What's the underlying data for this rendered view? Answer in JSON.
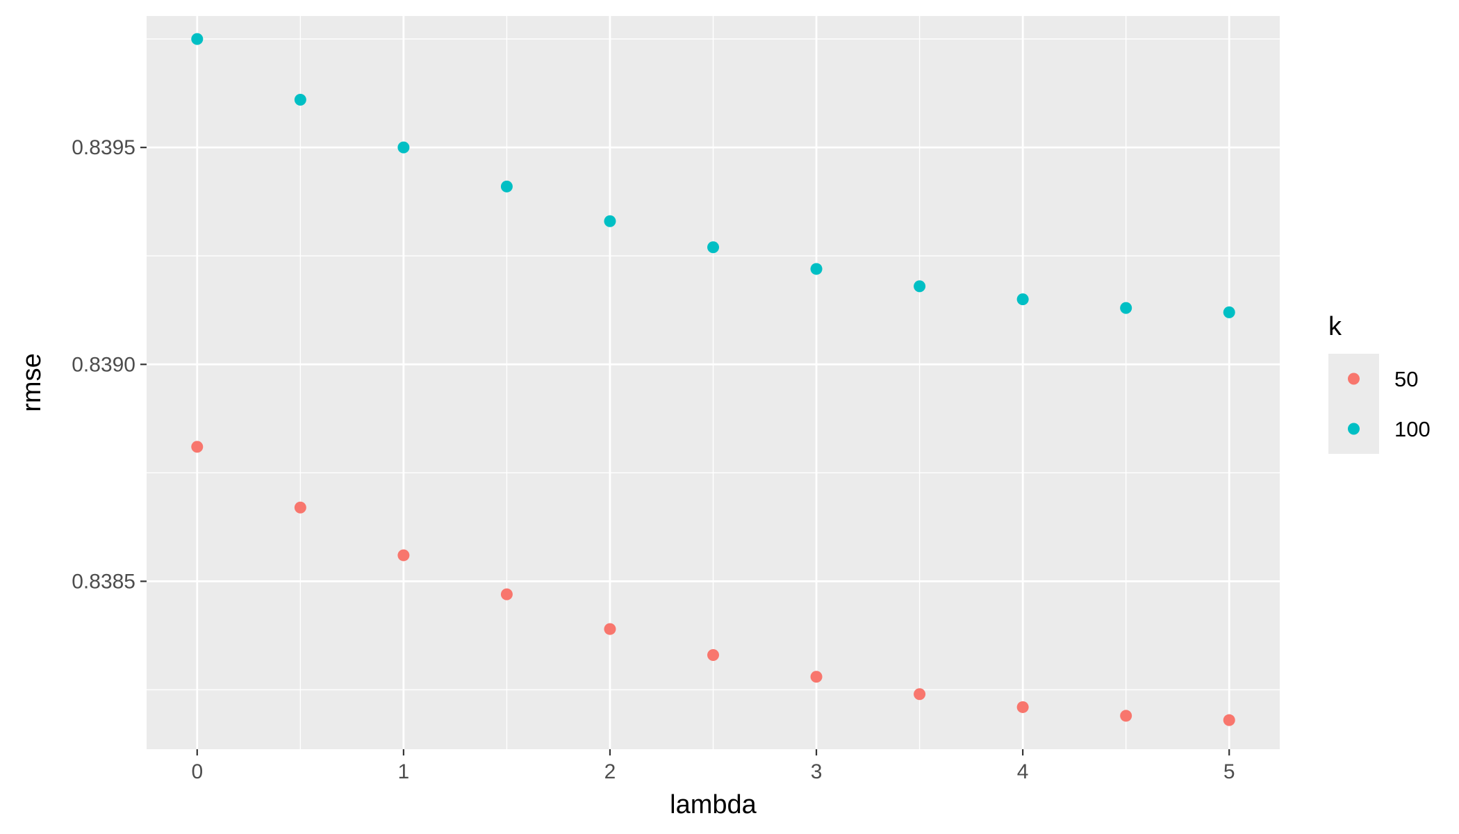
{
  "chart_data": {
    "type": "scatter",
    "title": "",
    "xlabel": "lambda",
    "ylabel": "rmse",
    "xlim": [
      -0.245,
      5.245
    ],
    "ylim": [
      0.838113,
      0.839803
    ],
    "x_ticks": [
      0,
      1,
      2,
      3,
      4,
      5
    ],
    "x_tick_labels": [
      "0",
      "1",
      "2",
      "3",
      "4",
      "5"
    ],
    "y_ticks": [
      0.8385,
      0.839,
      0.8395
    ],
    "y_tick_labels": [
      "0.8385",
      "0.8390",
      "0.8395"
    ],
    "grid": true,
    "legend": {
      "title": "k",
      "placement": "right"
    },
    "series": [
      {
        "name": "50",
        "color": "#F8766D",
        "x": [
          0,
          0.5,
          1,
          1.5,
          2,
          2.5,
          3,
          3.5,
          4,
          4.5,
          5
        ],
        "y": [
          0.83881,
          0.83867,
          0.83856,
          0.83847,
          0.83839,
          0.83833,
          0.83828,
          0.83824,
          0.83821,
          0.83819,
          0.83818
        ]
      },
      {
        "name": "100",
        "color": "#00BFC4",
        "x": [
          0,
          0.5,
          1,
          1.5,
          2,
          2.5,
          3,
          3.5,
          4,
          4.5,
          5
        ],
        "y": [
          0.83975,
          0.83961,
          0.8395,
          0.83941,
          0.83933,
          0.83927,
          0.83922,
          0.83918,
          0.83915,
          0.83913,
          0.83912
        ]
      }
    ]
  }
}
